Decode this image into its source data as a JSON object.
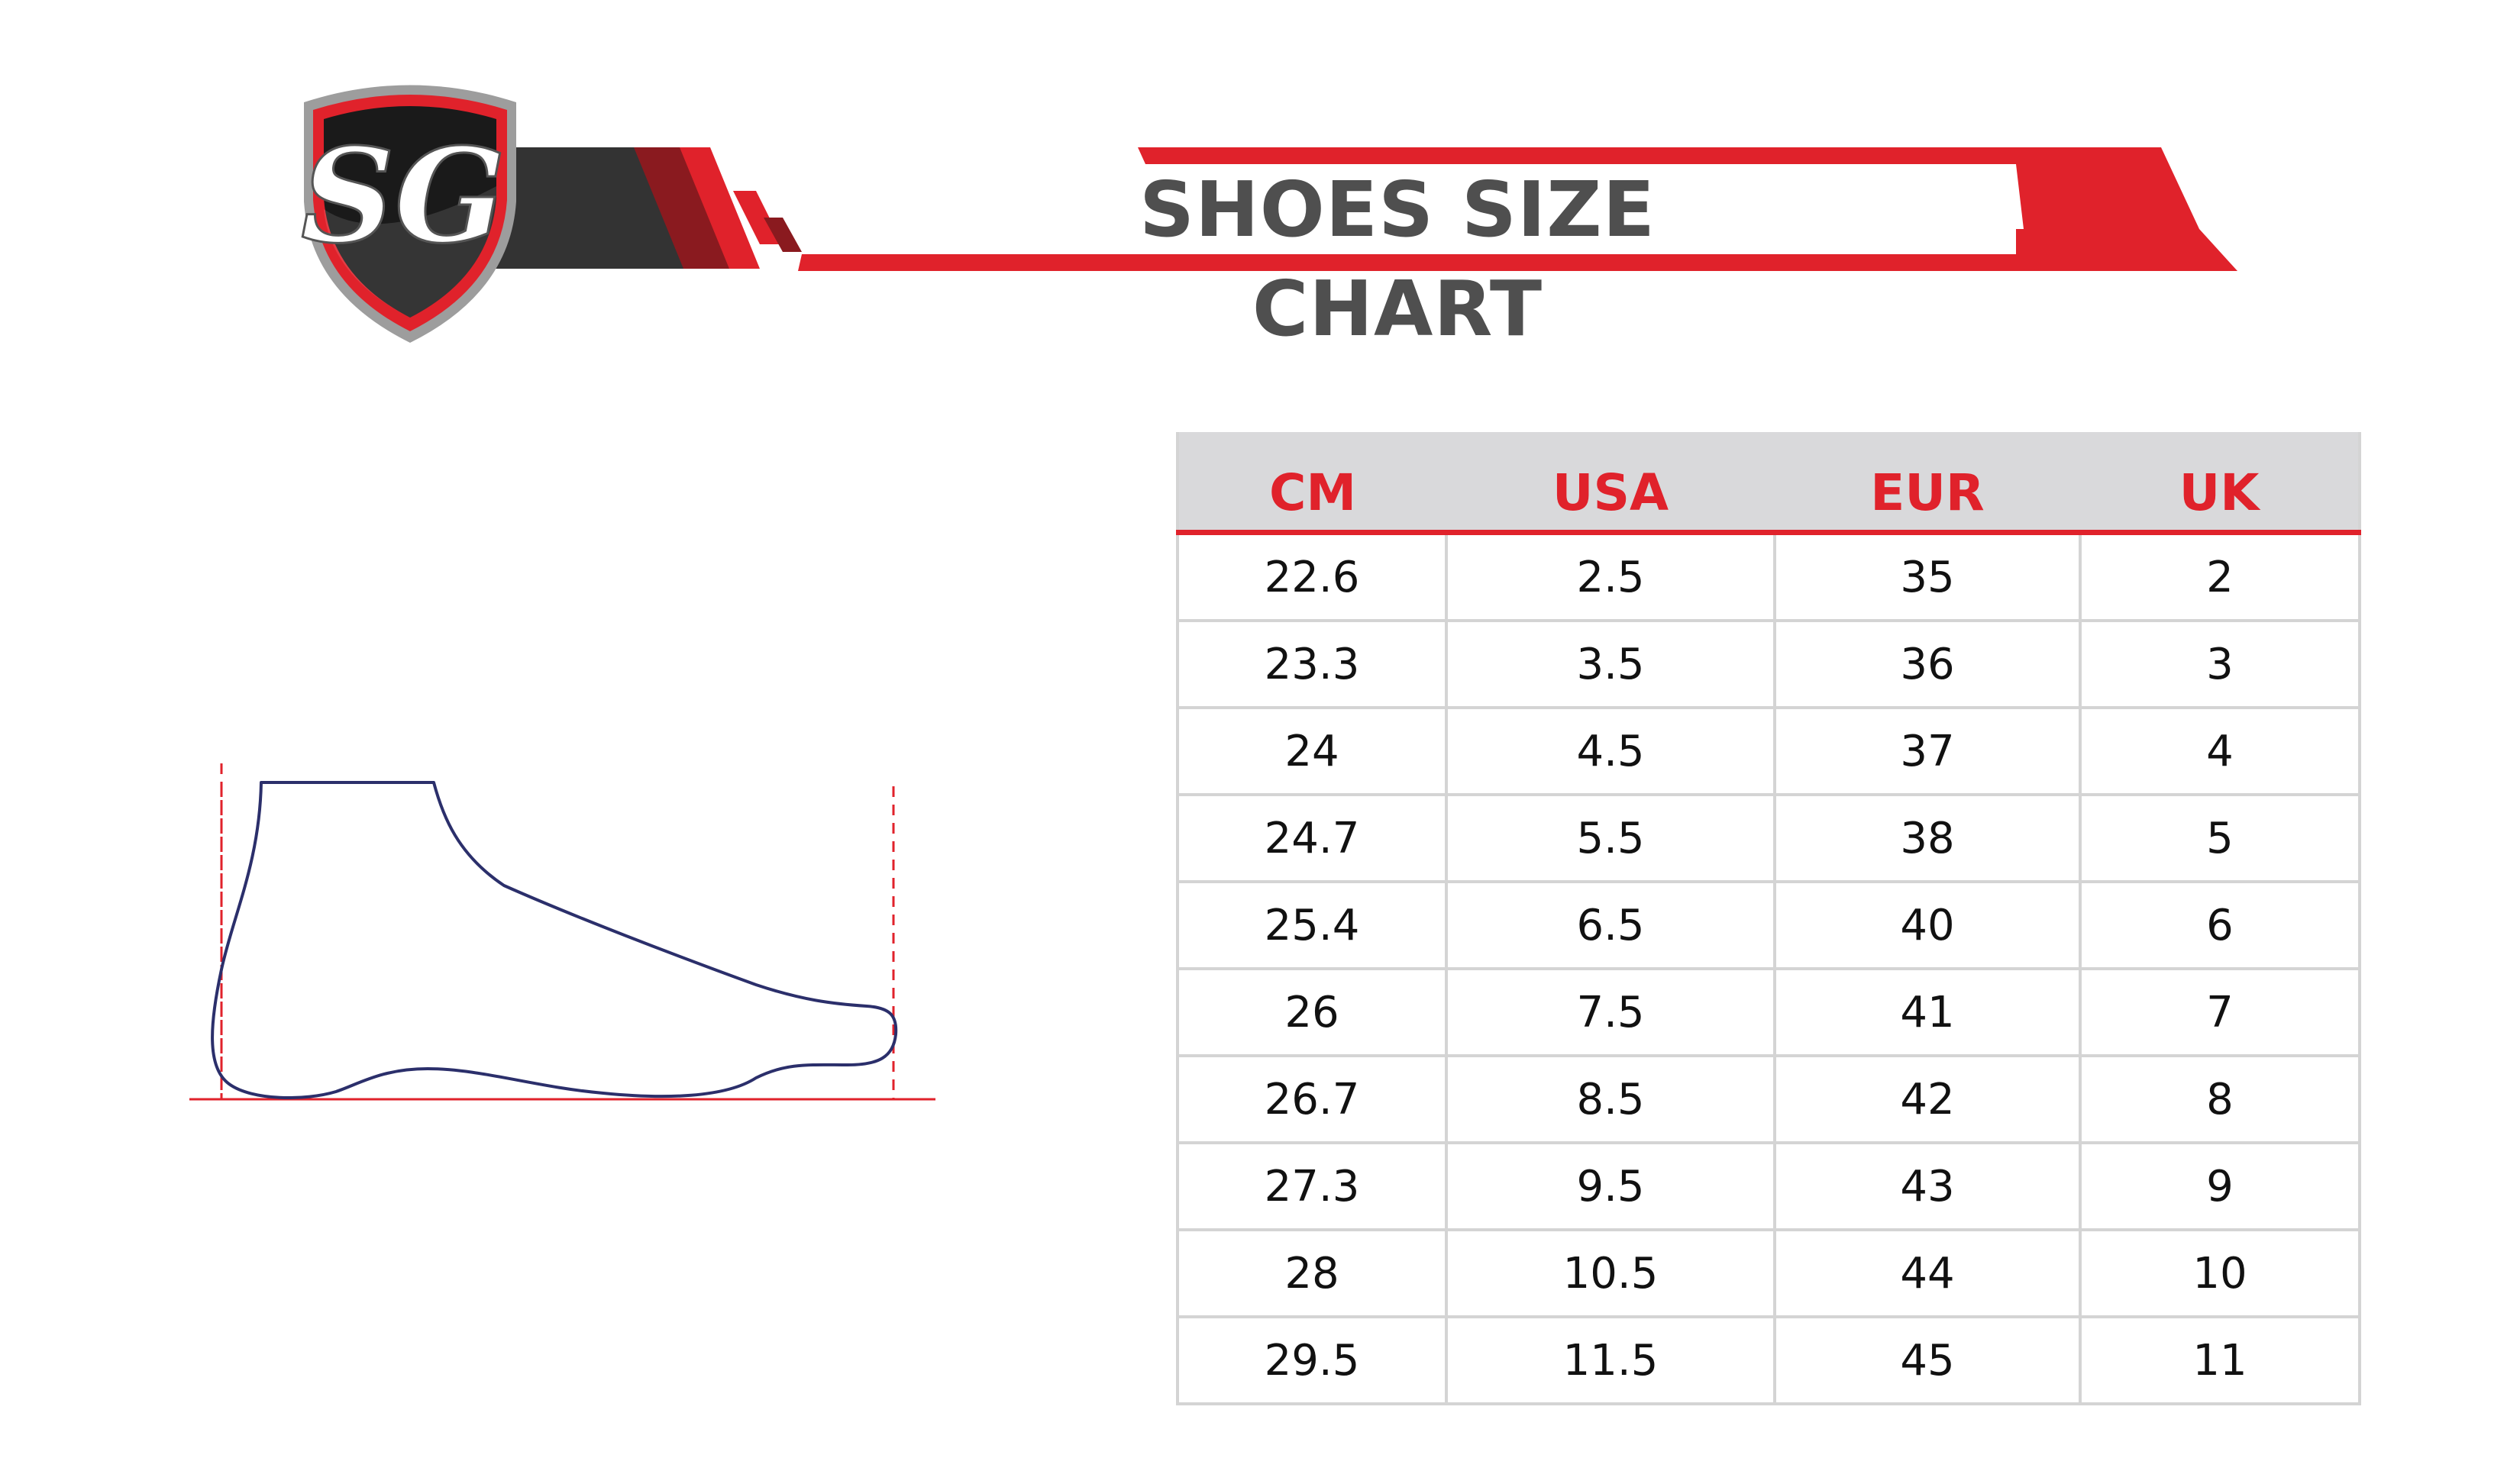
{
  "header": {
    "title": "SHOES SIZE CHART",
    "logo_text": "SG"
  },
  "colors": {
    "brand_red": "#e0222b",
    "dark_gray": "#333333",
    "title_gray": "#4f4f4f",
    "header_bg": "#d9d9db",
    "foot_outline": "#2b2f6b"
  },
  "illustration": {
    "icon": "foot-outline-icon"
  },
  "size_table": {
    "columns": [
      "CM",
      "USA",
      "EUR",
      "UK"
    ],
    "rows": [
      [
        "22.6",
        "2.5",
        "35",
        "2"
      ],
      [
        "23.3",
        "3.5",
        "36",
        "3"
      ],
      [
        "24",
        "4.5",
        "37",
        "4"
      ],
      [
        "24.7",
        "5.5",
        "38",
        "5"
      ],
      [
        "25.4",
        "6.5",
        "40",
        "6"
      ],
      [
        "26",
        "7.5",
        "41",
        "7"
      ],
      [
        "26.7",
        "8.5",
        "42",
        "8"
      ],
      [
        "27.3",
        "9.5",
        "43",
        "9"
      ],
      [
        "28",
        "10.5",
        "44",
        "10"
      ],
      [
        "29.5",
        "11.5",
        "45",
        "11"
      ]
    ]
  }
}
